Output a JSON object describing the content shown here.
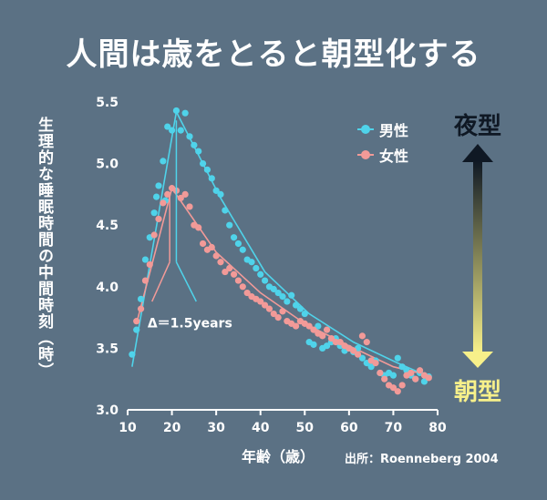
{
  "title": "人間は歳をとると朝型化する",
  "labels": {
    "night": "夜型",
    "morning": "朝型",
    "source": "出所：Roenneberg 2004",
    "delta": "Δ＝1.5years"
  },
  "colors": {
    "background": "#5b7184",
    "male": "#4fd3ea",
    "female": "#f29a98",
    "night_arrow": "#0f1824",
    "morning_arrow": "#f7f08a"
  },
  "chart_data": {
    "type": "scatter",
    "xlabel": "年齢（歳）",
    "ylabel": "生理的な睡眠時間の中間時刻（時）",
    "xlim": [
      10,
      80
    ],
    "ylim": [
      3.0,
      5.5
    ],
    "xticks": [
      10,
      20,
      30,
      40,
      50,
      60,
      70,
      80
    ],
    "yticks": [
      3.0,
      3.5,
      4.0,
      4.5,
      5.0,
      5.5
    ],
    "ytick_labels": [
      "3.0",
      "3.5",
      "4.0",
      "4.5",
      "5.0",
      "5.5"
    ],
    "legend_position": "top-right",
    "series": [
      {
        "name": "男性",
        "color_key": "male",
        "points": [
          [
            11,
            3.45
          ],
          [
            12,
            3.65
          ],
          [
            13,
            3.9
          ],
          [
            14,
            4.22
          ],
          [
            15,
            4.4
          ],
          [
            16,
            4.6
          ],
          [
            16.5,
            4.73
          ],
          [
            17,
            4.82
          ],
          [
            18,
            5.02
          ],
          [
            18.5,
            4.7
          ],
          [
            19,
            5.3
          ],
          [
            20,
            5.27
          ],
          [
            21,
            5.43
          ],
          [
            22,
            5.27
          ],
          [
            23,
            5.41
          ],
          [
            24,
            5.22
          ],
          [
            25,
            5.15
          ],
          [
            26,
            5.1
          ],
          [
            27,
            5.0
          ],
          [
            28,
            4.95
          ],
          [
            29,
            4.88
          ],
          [
            30,
            4.78
          ],
          [
            31,
            4.75
          ],
          [
            32,
            4.62
          ],
          [
            33,
            4.5
          ],
          [
            34,
            4.4
          ],
          [
            35,
            4.35
          ],
          [
            36,
            4.3
          ],
          [
            37,
            4.22
          ],
          [
            38,
            4.2
          ],
          [
            39,
            4.15
          ],
          [
            40,
            4.1
          ],
          [
            41,
            4.05
          ],
          [
            42,
            4.0
          ],
          [
            43,
            3.98
          ],
          [
            44,
            3.95
          ],
          [
            45,
            3.92
          ],
          [
            46,
            3.88
          ],
          [
            47,
            3.93
          ],
          [
            48,
            3.85
          ],
          [
            49,
            3.82
          ],
          [
            50,
            3.78
          ],
          [
            51,
            3.55
          ],
          [
            52,
            3.53
          ],
          [
            53,
            3.68
          ],
          [
            54,
            3.5
          ],
          [
            55,
            3.52
          ],
          [
            56,
            3.55
          ],
          [
            57,
            3.58
          ],
          [
            58,
            3.52
          ],
          [
            59,
            3.48
          ],
          [
            60,
            3.5
          ],
          [
            61,
            3.47
          ],
          [
            62,
            3.5
          ],
          [
            63,
            3.42
          ],
          [
            64,
            3.38
          ],
          [
            65,
            3.35
          ],
          [
            66,
            3.4
          ],
          [
            67,
            3.3
          ],
          [
            68,
            3.28
          ],
          [
            69,
            3.3
          ],
          [
            70,
            3.28
          ],
          [
            71,
            3.42
          ],
          [
            72,
            3.35
          ],
          [
            73,
            3.32
          ],
          [
            74,
            3.28
          ],
          [
            75,
            3.25
          ],
          [
            76,
            3.3
          ],
          [
            77,
            3.23
          ],
          [
            78,
            3.27
          ]
        ],
        "trend": [
          [
            11,
            3.35
          ],
          [
            21,
            5.42
          ],
          [
            31,
            4.72
          ],
          [
            41,
            4.12
          ],
          [
            51,
            3.78
          ],
          [
            61,
            3.55
          ],
          [
            71,
            3.38
          ],
          [
            78,
            3.27
          ]
        ]
      },
      {
        "name": "女性",
        "color_key": "female",
        "points": [
          [
            12,
            3.72
          ],
          [
            13,
            3.82
          ],
          [
            14,
            4.05
          ],
          [
            15,
            4.18
          ],
          [
            16,
            4.42
          ],
          [
            17,
            4.55
          ],
          [
            18,
            4.68
          ],
          [
            19,
            4.75
          ],
          [
            20,
            4.8
          ],
          [
            21,
            4.78
          ],
          [
            22,
            4.72
          ],
          [
            23,
            4.75
          ],
          [
            24,
            4.65
          ],
          [
            25,
            4.5
          ],
          [
            26,
            4.48
          ],
          [
            27,
            4.35
          ],
          [
            28,
            4.3
          ],
          [
            29,
            4.32
          ],
          [
            30,
            4.25
          ],
          [
            31,
            4.2
          ],
          [
            32,
            4.12
          ],
          [
            33,
            4.15
          ],
          [
            34,
            4.1
          ],
          [
            35,
            4.05
          ],
          [
            36,
            4.0
          ],
          [
            37,
            3.95
          ],
          [
            38,
            3.92
          ],
          [
            39,
            3.9
          ],
          [
            40,
            3.88
          ],
          [
            41,
            3.85
          ],
          [
            42,
            3.82
          ],
          [
            43,
            3.78
          ],
          [
            44,
            3.75
          ],
          [
            45,
            3.8
          ],
          [
            46,
            3.72
          ],
          [
            47,
            3.7
          ],
          [
            48,
            3.68
          ],
          [
            49,
            3.72
          ],
          [
            50,
            3.7
          ],
          [
            51,
            3.68
          ],
          [
            52,
            3.65
          ],
          [
            53,
            3.62
          ],
          [
            54,
            3.6
          ],
          [
            55,
            3.65
          ],
          [
            56,
            3.58
          ],
          [
            57,
            3.55
          ],
          [
            58,
            3.55
          ],
          [
            59,
            3.52
          ],
          [
            60,
            3.5
          ],
          [
            61,
            3.48
          ],
          [
            62,
            3.45
          ],
          [
            63,
            3.6
          ],
          [
            64,
            3.55
          ],
          [
            65,
            3.4
          ],
          [
            66,
            3.38
          ],
          [
            67,
            3.3
          ],
          [
            68,
            3.25
          ],
          [
            69,
            3.2
          ],
          [
            70,
            3.18
          ],
          [
            71,
            3.15
          ],
          [
            72,
            3.2
          ],
          [
            73,
            3.28
          ],
          [
            74,
            3.3
          ],
          [
            75,
            3.25
          ],
          [
            76,
            3.32
          ],
          [
            77,
            3.28
          ],
          [
            78,
            3.26
          ]
        ],
        "trend": [
          [
            12,
            3.7
          ],
          [
            20,
            4.8
          ],
          [
            30,
            4.28
          ],
          [
            40,
            3.95
          ],
          [
            50,
            3.7
          ],
          [
            60,
            3.52
          ],
          [
            70,
            3.35
          ],
          [
            78,
            3.28
          ]
        ]
      }
    ],
    "annotation": {
      "text": "Δ＝1.5years",
      "male_peak_x": 21,
      "female_peak_x": 19.5
    }
  }
}
